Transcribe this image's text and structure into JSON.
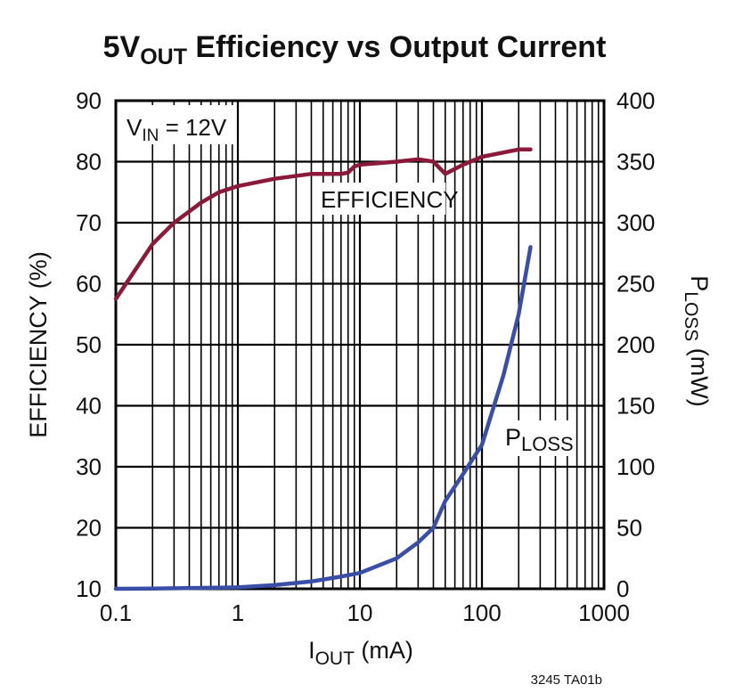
{
  "chart_data": {
    "type": "line",
    "title": {
      "main": "5V",
      "sub": "OUT",
      "rest": " Efficiency vs Output Current"
    },
    "xlabel": {
      "main": "I",
      "sub": "OUT",
      "rest": " (mA)"
    },
    "ylabel_left": "EFFICIENCY (%)",
    "ylabel_right": {
      "main": "P",
      "sub": "LOSS",
      "rest": " (mW)"
    },
    "x_scale": "log",
    "xlim": [
      0.1,
      1000
    ],
    "ylim_left": [
      10,
      90
    ],
    "ylim_right": [
      0,
      400
    ],
    "x_ticks": [
      "0.1",
      "1",
      "10",
      "100",
      "1000"
    ],
    "y_left_ticks": [
      "10",
      "20",
      "30",
      "40",
      "50",
      "60",
      "70",
      "80",
      "90"
    ],
    "y_right_ticks": [
      "0",
      "50",
      "100",
      "150",
      "200",
      "250",
      "300",
      "350",
      "400"
    ],
    "grid": true,
    "annotations": {
      "vin": {
        "main": "V",
        "sub": "IN",
        "rest": " = 12V"
      },
      "efficiency": "EFFICIENCY",
      "ploss": {
        "main": "P",
        "sub": "LOSS"
      }
    },
    "figure_id": "3245 TA01b",
    "series": [
      {
        "name": "EFFICIENCY",
        "axis": "left",
        "color": "#8b1a3a",
        "x": [
          0.1,
          0.2,
          0.3,
          0.5,
          0.7,
          1,
          2,
          4,
          7,
          8,
          9,
          10,
          20,
          30,
          40,
          50,
          70,
          100,
          200,
          250
        ],
        "y": [
          57.5,
          66.5,
          70.0,
          73.3,
          75.0,
          76.0,
          77.2,
          78.0,
          78.0,
          78.2,
          79.2,
          79.5,
          80.0,
          80.4,
          80.0,
          78.0,
          79.5,
          80.8,
          82.0,
          82.0
        ]
      },
      {
        "name": "P_LOSS",
        "axis": "right",
        "color": "#3a4ea8",
        "x": [
          0.1,
          0.2,
          0.5,
          1,
          2,
          4,
          7,
          10,
          20,
          30,
          40,
          50,
          70,
          100,
          150,
          200,
          250
        ],
        "y": [
          0,
          0.2,
          0.7,
          1.2,
          3,
          6,
          10,
          13,
          25,
          38,
          50,
          72,
          94,
          118,
          175,
          225,
          280
        ]
      }
    ]
  }
}
